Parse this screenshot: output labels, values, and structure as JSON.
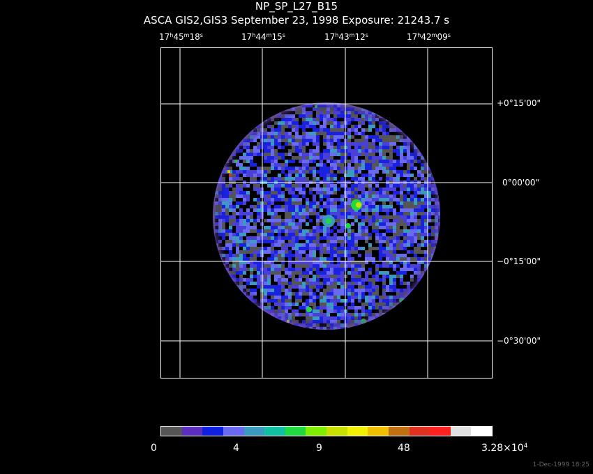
{
  "header": {
    "title": "NP_SP_L27_B15",
    "subtitle": "ASCA GIS2,GIS3 September 23, 1998 Exposure: 21243.7 s"
  },
  "ra_ticks": [
    {
      "h": "17",
      "m": "45",
      "s": "18"
    },
    {
      "h": "17",
      "m": "44",
      "s": "15"
    },
    {
      "h": "17",
      "m": "43",
      "s": "12"
    },
    {
      "h": "17",
      "m": "42",
      "s": "09"
    }
  ],
  "dec_ticks": [
    "+0°15'00\"",
    "0°00'00\"",
    "−0°15'00\"",
    "−0°30'00\""
  ],
  "colorbar": {
    "colors": [
      "#555555",
      "#5a2fbf",
      "#1020e0",
      "#6a6af0",
      "#3a9ac0",
      "#10c0a0",
      "#20d840",
      "#80ee00",
      "#c8e000",
      "#f0f000",
      "#f0c000",
      "#c07010",
      "#e03020",
      "#ff2020",
      "#e0e0e0",
      "#ffffff"
    ],
    "labels": [
      {
        "text": "0"
      },
      {
        "text": "4"
      },
      {
        "text": "9"
      },
      {
        "text": "48"
      },
      {
        "text": "3.28×10",
        "exp": "4"
      }
    ]
  },
  "footer": "1-Dec-1999 18:25"
}
